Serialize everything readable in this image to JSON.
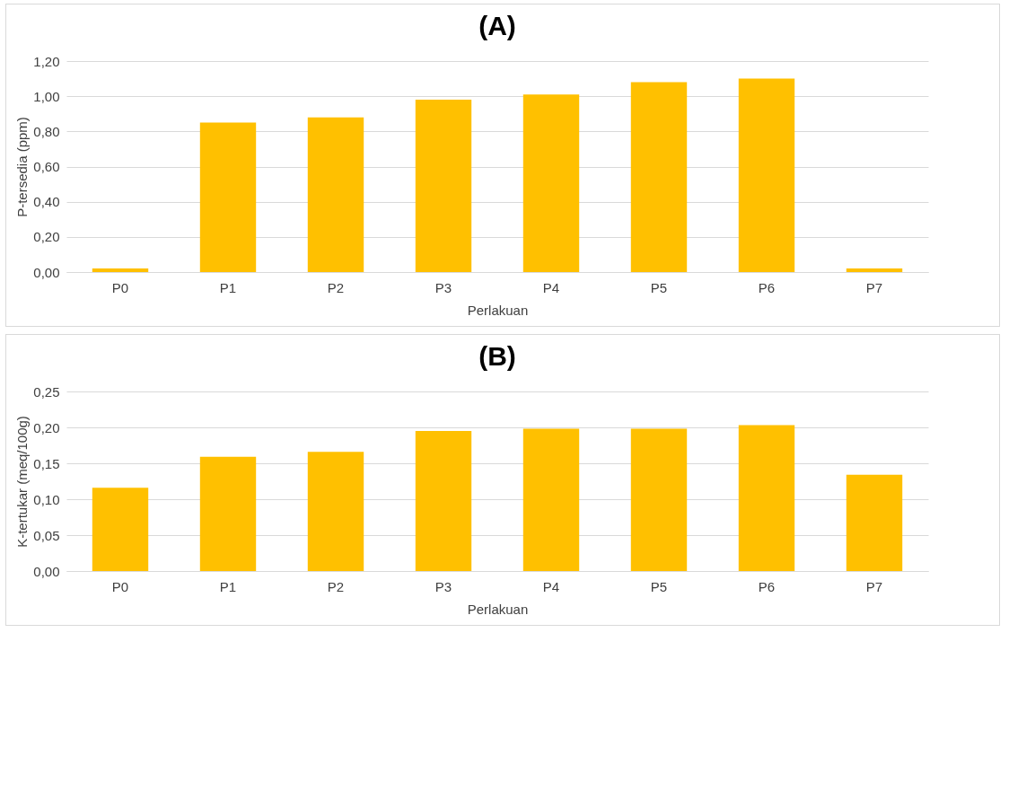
{
  "chart_data": [
    {
      "type": "bar",
      "title": "(A)",
      "xlabel": "Perlakuan",
      "ylabel": "P-tersedia (ppm)",
      "categories": [
        "P0",
        "P1",
        "P2",
        "P3",
        "P4",
        "P5",
        "P6",
        "P7"
      ],
      "values": [
        0.02,
        0.85,
        0.88,
        0.98,
        1.01,
        1.08,
        1.1,
        0.02
      ],
      "color": "#ffc000",
      "ylim": [
        0,
        1.2
      ],
      "yticks": [
        {
          "value": 0,
          "label": "0,00"
        },
        {
          "value": 0.2,
          "label": "0,20"
        },
        {
          "value": 0.4,
          "label": "0,40"
        },
        {
          "value": 0.6,
          "label": "0,60"
        },
        {
          "value": 0.8,
          "label": "0,80"
        },
        {
          "value": 1.0,
          "label": "1,00"
        },
        {
          "value": 1.2,
          "label": "1,20"
        }
      ],
      "grid": "y"
    },
    {
      "type": "bar",
      "title": "(B)",
      "xlabel": "Perlakuan",
      "ylabel": "K-tertukar (meq/100g)",
      "categories": [
        "P0",
        "P1",
        "P2",
        "P3",
        "P4",
        "P5",
        "P6",
        "P7"
      ],
      "values": [
        0.116,
        0.159,
        0.166,
        0.195,
        0.198,
        0.198,
        0.203,
        0.134
      ],
      "color": "#ffc000",
      "ylim": [
        0,
        0.25
      ],
      "yticks": [
        {
          "value": 0,
          "label": "0,00"
        },
        {
          "value": 0.05,
          "label": "0,05"
        },
        {
          "value": 0.1,
          "label": "0,10"
        },
        {
          "value": 0.15,
          "label": "0,15"
        },
        {
          "value": 0.2,
          "label": "0,20"
        },
        {
          "value": 0.25,
          "label": "0,25"
        }
      ],
      "grid": "y"
    }
  ]
}
